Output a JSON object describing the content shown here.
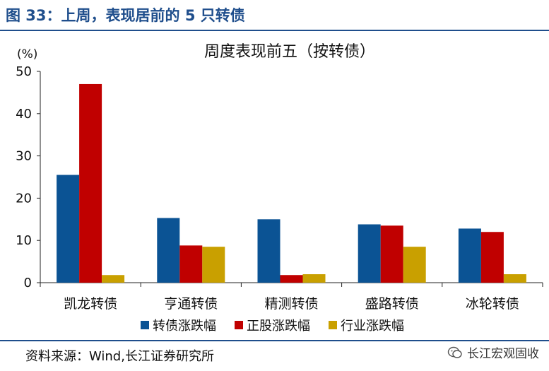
{
  "figure_title": "图 33：上周，表现居前的 5 只转债",
  "source": "资料来源：Wind,长江证券研究所",
  "watermark": "长江宏观固收",
  "chart_data": {
    "type": "bar",
    "title": "周度表现前五（按转债）",
    "ylabel": "(%)",
    "xlabel": "",
    "ylim": [
      0,
      50
    ],
    "yticks": [
      0,
      10,
      20,
      30,
      40,
      50
    ],
    "categories": [
      "凯龙转债",
      "亨通转债",
      "精测转债",
      "盛路转债",
      "冰轮转债"
    ],
    "series": [
      {
        "name": "转债涨跌幅",
        "color": "#0b5394",
        "values": [
          25.5,
          15.3,
          15.0,
          13.8,
          12.8
        ]
      },
      {
        "name": "正股涨跌幅",
        "color": "#c00000",
        "values": [
          47.0,
          8.8,
          1.8,
          13.5,
          12.0
        ]
      },
      {
        "name": "行业涨跌幅",
        "color": "#c9a000",
        "values": [
          1.8,
          8.5,
          2.0,
          8.5,
          2.0
        ]
      }
    ],
    "grid": false,
    "legend_position": "bottom"
  }
}
